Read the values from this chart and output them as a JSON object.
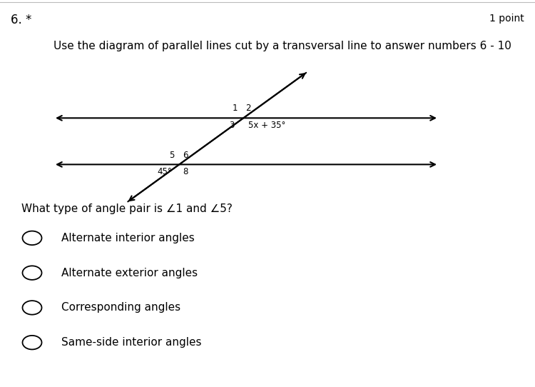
{
  "title_left": "6. *",
  "title_right": "1 point",
  "instruction": "Use the diagram of parallel lines cut by a transversal line to answer numbers 6 - 10",
  "question": "What type of angle pair is ∠1 and ∠5?",
  "choices": [
    "Alternate interior angles",
    "Alternate exterior angles",
    "Corresponding angles",
    "Same-side interior angles"
  ],
  "bg_color": "#ffffff",
  "text_color": "#000000",
  "font_size_main": 11,
  "font_size_small": 8.5
}
